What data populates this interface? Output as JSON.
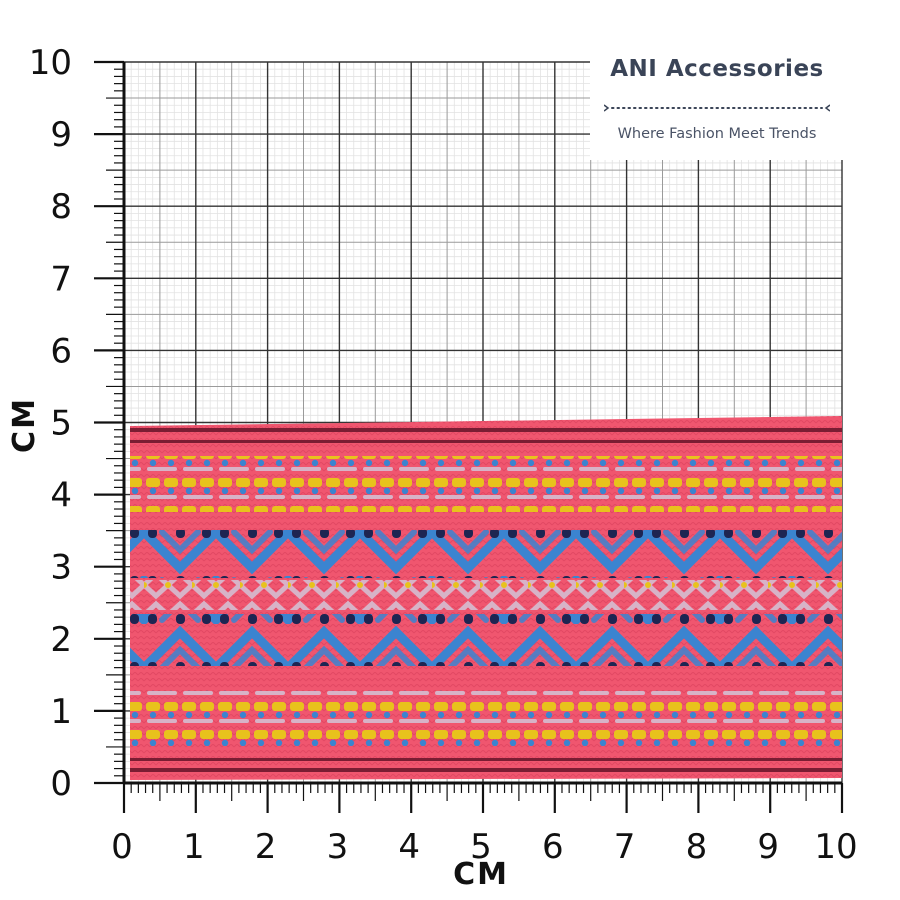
{
  "brand": {
    "name": "ANI Accessories",
    "tagline": "Where Fashion Meet Trends",
    "text_color": "#3a4457"
  },
  "y_axis": {
    "title": "CM",
    "ticks": [
      "0",
      "1",
      "2",
      "3",
      "4",
      "5",
      "6",
      "7",
      "8",
      "9",
      "10"
    ],
    "range": [
      0,
      10
    ]
  },
  "x_axis": {
    "title": "CM",
    "ticks": [
      "0",
      "1",
      "2",
      "3",
      "4",
      "5",
      "6",
      "7",
      "8",
      "9",
      "10"
    ],
    "range": [
      0,
      10
    ]
  },
  "product": {
    "item": "woven jacquard ribbon",
    "width_cm": 5,
    "colors": {
      "base": "#f0566f",
      "edge": "#e63c5c",
      "yellow": "#e8c21c",
      "blue": "#3b84d0",
      "navy": "#1e2552",
      "lilac": "#d7b3c7"
    }
  }
}
